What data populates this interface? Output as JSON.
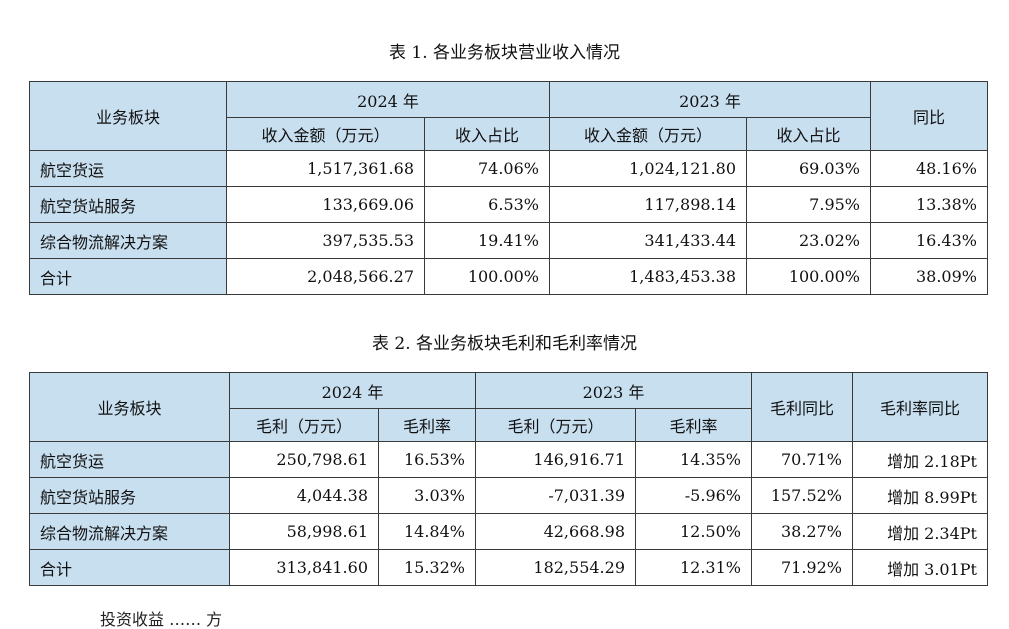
{
  "table1": {
    "caption": "表 1. 各业务板块营业收入情况",
    "header": {
      "segment": "业务板块",
      "y2024": "2024 年",
      "y2023": "2023 年",
      "yoy": "同比",
      "sub_amount_2024": "收入金额（万元）",
      "sub_share_2024": "收入占比",
      "sub_amount_2023": "收入金额（万元）",
      "sub_share_2023": "收入占比"
    },
    "rows": [
      {
        "name": "航空货运",
        "amt2024": "1,517,361.68",
        "share2024": "74.06%",
        "amt2023": "1,024,121.80",
        "share2023": "69.03%",
        "yoy": "48.16%"
      },
      {
        "name": "航空货站服务",
        "amt2024": "133,669.06",
        "share2024": "6.53%",
        "amt2023": "117,898.14",
        "share2023": "7.95%",
        "yoy": "13.38%"
      },
      {
        "name": "综合物流解决方案",
        "amt2024": "397,535.53",
        "share2024": "19.41%",
        "amt2023": "341,433.44",
        "share2023": "23.02%",
        "yoy": "16.43%"
      },
      {
        "name": "合计",
        "amt2024": "2,048,566.27",
        "share2024": "100.00%",
        "amt2023": "1,483,453.38",
        "share2023": "100.00%",
        "yoy": "38.09%"
      }
    ]
  },
  "table2": {
    "caption": "表 2. 各业务板块毛利和毛利率情况",
    "header": {
      "segment": "业务板块",
      "y2024": "2024 年",
      "y2023": "2023 年",
      "gp_yoy": "毛利同比",
      "gm_yoy": "毛利率同比",
      "sub_gp_2024": "毛利（万元）",
      "sub_gm_2024": "毛利率",
      "sub_gp_2023": "毛利（万元）",
      "sub_gm_2023": "毛利率"
    },
    "rows": [
      {
        "name": "航空货运",
        "gp2024": "250,798.61",
        "gm2024": "16.53%",
        "gp2023": "146,916.71",
        "gm2023": "14.35%",
        "gp_yoy": "70.71%",
        "gm_yoy": "增加 2.18Pt"
      },
      {
        "name": "航空货站服务",
        "gp2024": "4,044.38",
        "gm2024": "3.03%",
        "gp2023": "-7,031.39",
        "gm2023": "-5.96%",
        "gp_yoy": "157.52%",
        "gm_yoy": "增加 8.99Pt"
      },
      {
        "name": "综合物流解决方案",
        "gp2024": "58,998.61",
        "gm2024": "14.84%",
        "gp2023": "42,668.98",
        "gm2023": "12.50%",
        "gp_yoy": "38.27%",
        "gm_yoy": "增加 2.34Pt"
      },
      {
        "name": "合计",
        "gp2024": "313,841.60",
        "gm2024": "15.32%",
        "gp2023": "182,554.29",
        "gm2023": "12.31%",
        "gp_yoy": "71.92%",
        "gm_yoy": "增加 3.01Pt"
      }
    ]
  },
  "cutoff_text": "投资收益 …… 方"
}
